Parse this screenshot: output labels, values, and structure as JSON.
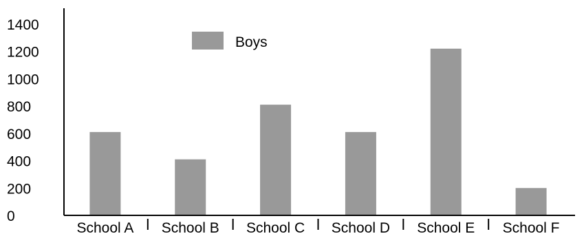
{
  "chart_data": {
    "type": "bar",
    "categories": [
      "School A",
      "School B",
      "School C",
      "School D",
      "School E",
      "School F"
    ],
    "series": [
      {
        "name": "Boys",
        "values": [
          610,
          410,
          810,
          610,
          1220,
          200
        ],
        "color": "#999999"
      }
    ],
    "yticks": [
      "0",
      "200",
      "400",
      "600",
      "800",
      "1000",
      "1200",
      "1400"
    ],
    "ylim": [
      0,
      1400
    ],
    "grid": false,
    "legend": "top-left"
  }
}
